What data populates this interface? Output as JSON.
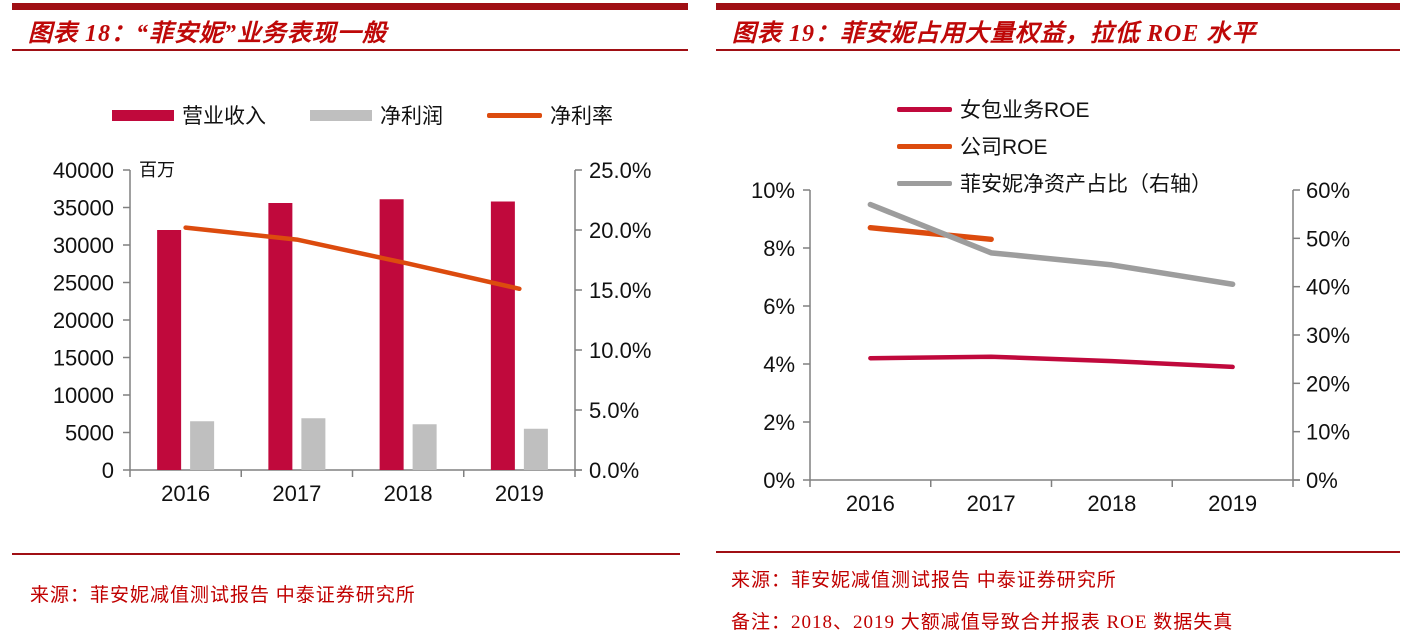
{
  "theme": {
    "brand_red": "#A00F14",
    "title_red": "#BE0808",
    "source_red": "#C00000",
    "axis_gray": "#808080",
    "text_black": "#111111"
  },
  "left_panel": {
    "title": "图表 18：“菲安妮”业务表现一般",
    "source": "来源：菲安妮减值测试报告  中泰证券研究所",
    "chart_data": {
      "type": "bar",
      "title": "“菲安妮”业务表现一般",
      "categories": [
        "2016",
        "2017",
        "2018",
        "2019"
      ],
      "unit_label": "百万",
      "series": [
        {
          "name": "营业收入",
          "type": "bar",
          "axis": "left",
          "color": "#C0093C",
          "values": [
            32000,
            35600,
            36100,
            35800
          ]
        },
        {
          "name": "净利润",
          "type": "bar",
          "axis": "left",
          "color": "#BFBFBF",
          "values": [
            6500,
            6900,
            6100,
            5500
          ]
        },
        {
          "name": "净利率",
          "type": "line",
          "axis": "right",
          "color": "#DC4B0E",
          "values": [
            20.2,
            19.2,
            17.2,
            15.1
          ]
        }
      ],
      "left_axis": {
        "min": 0,
        "max": 40000,
        "tick_labels": [
          "0",
          "5000",
          "10000",
          "15000",
          "20000",
          "25000",
          "30000",
          "35000",
          "40000"
        ]
      },
      "right_axis": {
        "min": 0,
        "max": 25,
        "tick_labels": [
          "0.0%",
          "5.0%",
          "10.0%",
          "15.0%",
          "20.0%",
          "25.0%"
        ]
      },
      "legend_position": "top",
      "grid": false
    }
  },
  "right_panel": {
    "title": "图表 19：菲安妮占用大量权益，拉低 ROE 水平",
    "source": "来源：菲安妮减值测试报告  中泰证券研究所",
    "note": "备注：2018、2019 大额减值导致合并报表 ROE 数据失真",
    "chart_data": {
      "type": "line",
      "title": "菲安妮占用大量权益，拉低 ROE 水平",
      "categories": [
        "2016",
        "2017",
        "2018",
        "2019"
      ],
      "series": [
        {
          "name": "女包业务ROE",
          "type": "line",
          "axis": "left",
          "color": "#C0093C",
          "values": [
            4.2,
            4.25,
            4.1,
            3.9
          ]
        },
        {
          "name": "公司ROE",
          "type": "line",
          "axis": "left",
          "color": "#DC4B0E",
          "values": [
            8.7,
            8.3,
            null,
            null
          ]
        },
        {
          "name": "菲安妮净资产占比（右轴）",
          "type": "line",
          "axis": "right",
          "color": "#9D9D9D",
          "values": [
            57,
            47,
            44.5,
            40.5
          ]
        }
      ],
      "left_axis": {
        "min": 0,
        "max": 10,
        "tick_labels": [
          "0%",
          "2%",
          "4%",
          "6%",
          "8%",
          "10%"
        ]
      },
      "right_axis": {
        "min": 0,
        "max": 60,
        "tick_labels": [
          "0%",
          "10%",
          "20%",
          "30%",
          "40%",
          "50%",
          "60%"
        ]
      },
      "legend_position": "top",
      "grid": false
    }
  }
}
